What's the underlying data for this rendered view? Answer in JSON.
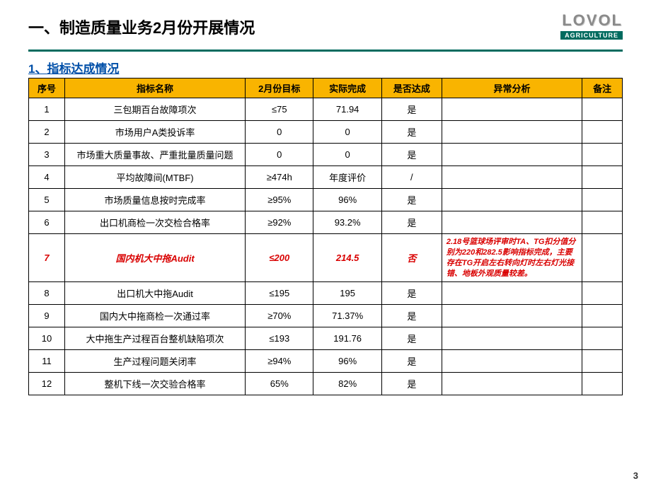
{
  "header": {
    "main_title": "一、制造质量业务2月份开展情况",
    "logo_main": "LOVOL",
    "logo_sub": "AGRICULTURE"
  },
  "subtitle": "1、指标达成情况",
  "columns": {
    "seq": "序号",
    "name": "指标名称",
    "target": "2月份目标",
    "actual": "实际完成",
    "meet": "是否达成",
    "analysis": "异常分析",
    "note": "备注"
  },
  "rows": [
    {
      "seq": "1",
      "name": "三包期百台故障项次",
      "target": "≤75",
      "actual": "71.94",
      "meet": "是",
      "analysis": "",
      "note": "",
      "fail": false
    },
    {
      "seq": "2",
      "name": "市场用户A类投诉率",
      "target": "0",
      "actual": "0",
      "meet": "是",
      "analysis": "",
      "note": "",
      "fail": false
    },
    {
      "seq": "3",
      "name": "市场重大质量事故、严重批量质量问题",
      "target": "0",
      "actual": "0",
      "meet": "是",
      "analysis": "",
      "note": "",
      "fail": false
    },
    {
      "seq": "4",
      "name": "平均故障间(MTBF)",
      "target": "≥474h",
      "actual": "年度评价",
      "meet": "/",
      "analysis": "",
      "note": "",
      "fail": false
    },
    {
      "seq": "5",
      "name": "市场质量信息按时完成率",
      "target": "≥95%",
      "actual": "96%",
      "meet": "是",
      "analysis": "",
      "note": "",
      "fail": false
    },
    {
      "seq": "6",
      "name": "出口机商检一次交检合格率",
      "target": "≥92%",
      "actual": "93.2%",
      "meet": "是",
      "analysis": "",
      "note": "",
      "fail": false
    },
    {
      "seq": "7",
      "name": "国内机大中拖Audit",
      "target": "≤200",
      "actual": "214.5",
      "meet": "否",
      "analysis": "2.18号篮球场评审时TA、TG扣分值分别为220和282.5影响指标完成，主要存在TG开启左右转向灯时左右灯光接错、地板外观质量较差。",
      "note": "",
      "fail": true
    },
    {
      "seq": "8",
      "name": "出口机大中拖Audit",
      "target": "≤195",
      "actual": "195",
      "meet": "是",
      "analysis": "",
      "note": "",
      "fail": false
    },
    {
      "seq": "9",
      "name": "国内大中拖商检一次通过率",
      "target": "≥70%",
      "actual": "71.37%",
      "meet": "是",
      "analysis": "",
      "note": "",
      "fail": false
    },
    {
      "seq": "10",
      "name": "大中拖生产过程百台整机缺陷项次",
      "target": "≤193",
      "actual": "191.76",
      "meet": "是",
      "analysis": "",
      "note": "",
      "fail": false
    },
    {
      "seq": "11",
      "name": "生产过程问题关闭率",
      "target": "≥94%",
      "actual": "96%",
      "meet": "是",
      "analysis": "",
      "note": "",
      "fail": false
    },
    {
      "seq": "12",
      "name": "整机下线一次交验合格率",
      "target": "65%",
      "actual": "82%",
      "meet": "是",
      "analysis": "",
      "note": "",
      "fail": false
    }
  ],
  "page_number": "3",
  "style": {
    "header_bg": "#f9b400",
    "border_color": "#000000",
    "fail_color": "#d90000",
    "divider_color": "#006b5f",
    "subtitle_color": "#004fa8"
  }
}
